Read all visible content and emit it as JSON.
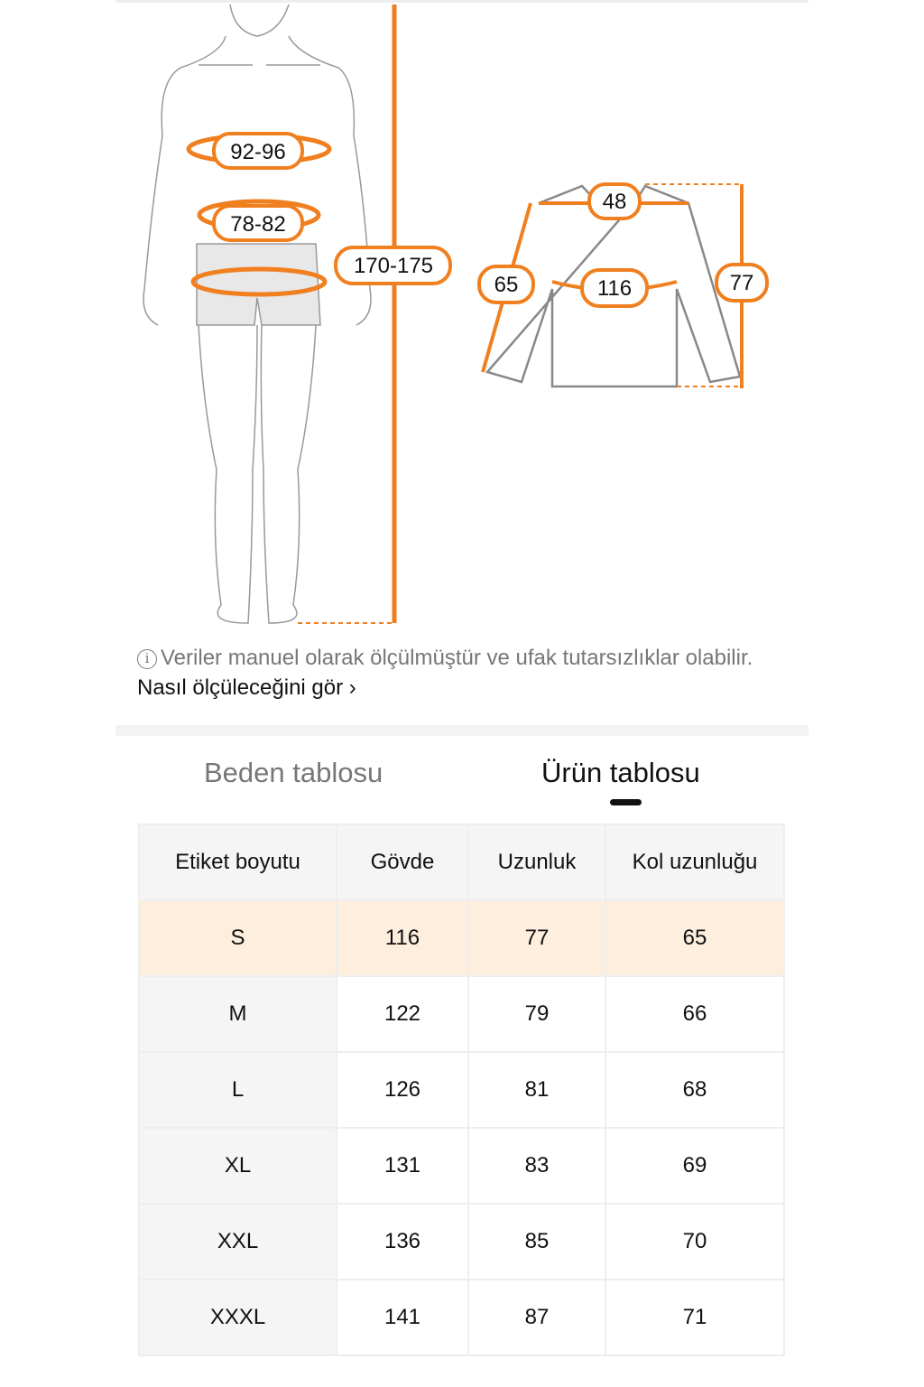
{
  "figure": {
    "body_labels": {
      "chest": "92-96",
      "waist": "78-82",
      "height": "170-175"
    },
    "garment_labels": {
      "shoulder": "48",
      "chest": "116",
      "sleeve": "65",
      "length": "77"
    },
    "accent": "#f07f1f"
  },
  "note": {
    "icon": "info-icon",
    "text": "Veriler manuel olarak ölçülmüştür ve ufak tutarsızlıklar olabilir.",
    "link": "Nasıl ölçüleceğini gör ›"
  },
  "tabs": [
    {
      "label": "Beden tablosu",
      "active": false
    },
    {
      "label": "Ürün tablosu",
      "active": true
    }
  ],
  "table": {
    "headers": [
      "Etiket boyutu",
      "Gövde",
      "Uzunluk",
      "Kol uzunluğu"
    ],
    "rows": [
      [
        "S",
        "116",
        "77",
        "65"
      ],
      [
        "M",
        "122",
        "79",
        "66"
      ],
      [
        "L",
        "126",
        "81",
        "68"
      ],
      [
        "XL",
        "131",
        "83",
        "69"
      ],
      [
        "XXL",
        "136",
        "85",
        "70"
      ],
      [
        "XXXL",
        "141",
        "87",
        "71"
      ]
    ],
    "highlight_color": "#fdeedd"
  }
}
